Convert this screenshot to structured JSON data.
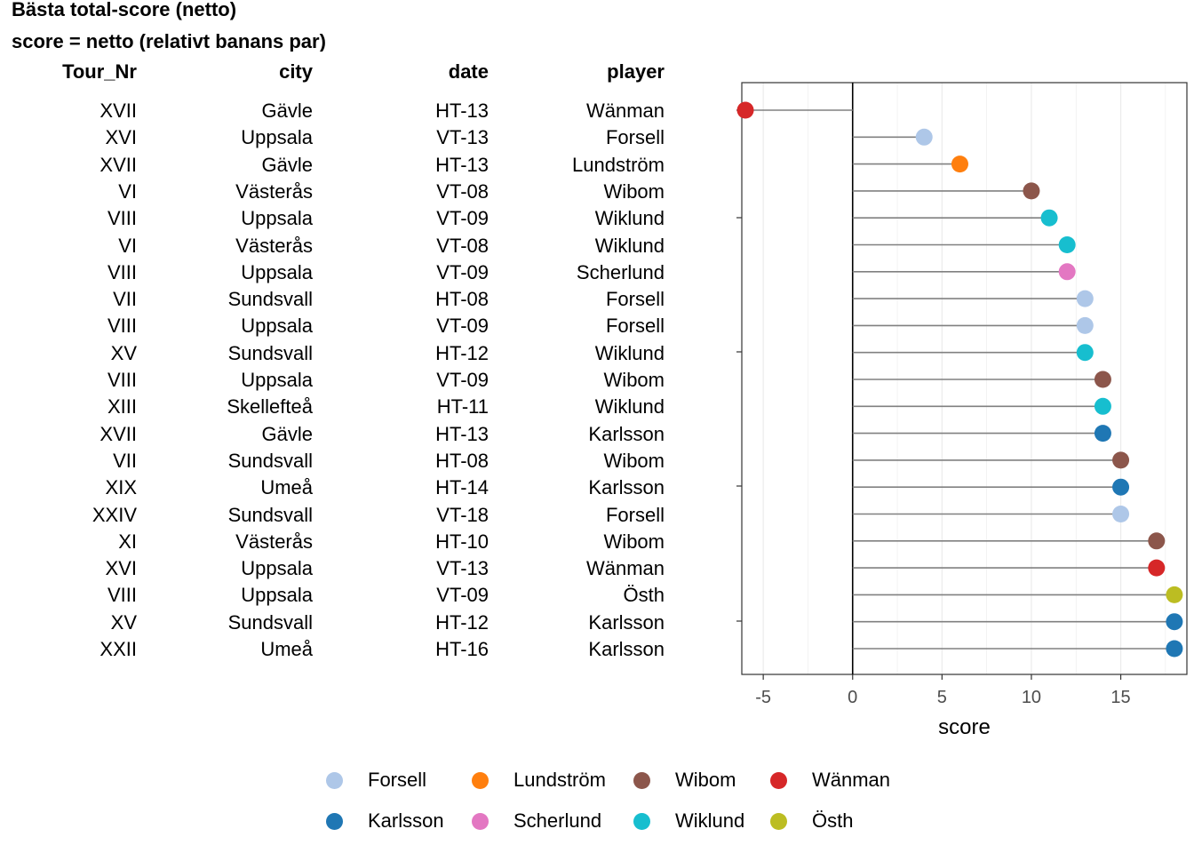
{
  "title": "Bästa total-score (netto)",
  "subtitle": "score = netto (relativt banans par)",
  "table": {
    "headers": [
      "Tour_Nr",
      "city",
      "date",
      "player"
    ],
    "rows": [
      [
        "XVII",
        "Gävle",
        "HT-13",
        "Wänman"
      ],
      [
        "XVI",
        "Uppsala",
        "VT-13",
        "Forsell"
      ],
      [
        "XVII",
        "Gävle",
        "HT-13",
        "Lundström"
      ],
      [
        "VI",
        "Västerås",
        "VT-08",
        "Wibom"
      ],
      [
        "VIII",
        "Uppsala",
        "VT-09",
        "Wiklund"
      ],
      [
        "VI",
        "Västerås",
        "VT-08",
        "Wiklund"
      ],
      [
        "VIII",
        "Uppsala",
        "VT-09",
        "Scherlund"
      ],
      [
        "VII",
        "Sundsvall",
        "HT-08",
        "Forsell"
      ],
      [
        "VIII",
        "Uppsala",
        "VT-09",
        "Forsell"
      ],
      [
        "XV",
        "Sundsvall",
        "HT-12",
        "Wiklund"
      ],
      [
        "VIII",
        "Uppsala",
        "VT-09",
        "Wibom"
      ],
      [
        "XIII",
        "Skellefteå",
        "HT-11",
        "Wiklund"
      ],
      [
        "XVII",
        "Gävle",
        "HT-13",
        "Karlsson"
      ],
      [
        "VII",
        "Sundsvall",
        "HT-08",
        "Wibom"
      ],
      [
        "XIX",
        "Umeå",
        "HT-14",
        "Karlsson"
      ],
      [
        "XXIV",
        "Sundsvall",
        "VT-18",
        "Forsell"
      ],
      [
        "XI",
        "Västerås",
        "HT-10",
        "Wibom"
      ],
      [
        "XVI",
        "Uppsala",
        "VT-13",
        "Wänman"
      ],
      [
        "VIII",
        "Uppsala",
        "VT-09",
        "Östh"
      ],
      [
        "XV",
        "Sundsvall",
        "HT-12",
        "Karlsson"
      ],
      [
        "XXII",
        "Umeå",
        "HT-16",
        "Karlsson"
      ]
    ]
  },
  "chart_data": {
    "type": "scatter",
    "xlabel": "score",
    "xlim": [
      -6.2,
      18.7
    ],
    "xticks": [
      -5,
      0,
      5,
      10,
      15
    ],
    "reference_line": 0,
    "values": [
      -6,
      4,
      6,
      10,
      11,
      12,
      12,
      13,
      13,
      13,
      14,
      14,
      14,
      15,
      15,
      15,
      17,
      17,
      18,
      18,
      18
    ],
    "players": [
      "Wänman",
      "Forsell",
      "Lundström",
      "Wibom",
      "Wiklund",
      "Wiklund",
      "Scherlund",
      "Forsell",
      "Forsell",
      "Wiklund",
      "Wibom",
      "Wiklund",
      "Karlsson",
      "Wibom",
      "Karlsson",
      "Forsell",
      "Wibom",
      "Wänman",
      "Östh",
      "Karlsson",
      "Karlsson"
    ],
    "legend_position": "bottom",
    "legend": [
      {
        "name": "Forsell",
        "color": "#aec7e8"
      },
      {
        "name": "Lundström",
        "color": "#ff7f0e"
      },
      {
        "name": "Wibom",
        "color": "#8c564b"
      },
      {
        "name": "Wänman",
        "color": "#d62728"
      },
      {
        "name": "Karlsson",
        "color": "#1f77b4"
      },
      {
        "name": "Scherlund",
        "color": "#e377c2"
      },
      {
        "name": "Wiklund",
        "color": "#17becf"
      },
      {
        "name": "Östh",
        "color": "#bcbd22"
      }
    ]
  }
}
